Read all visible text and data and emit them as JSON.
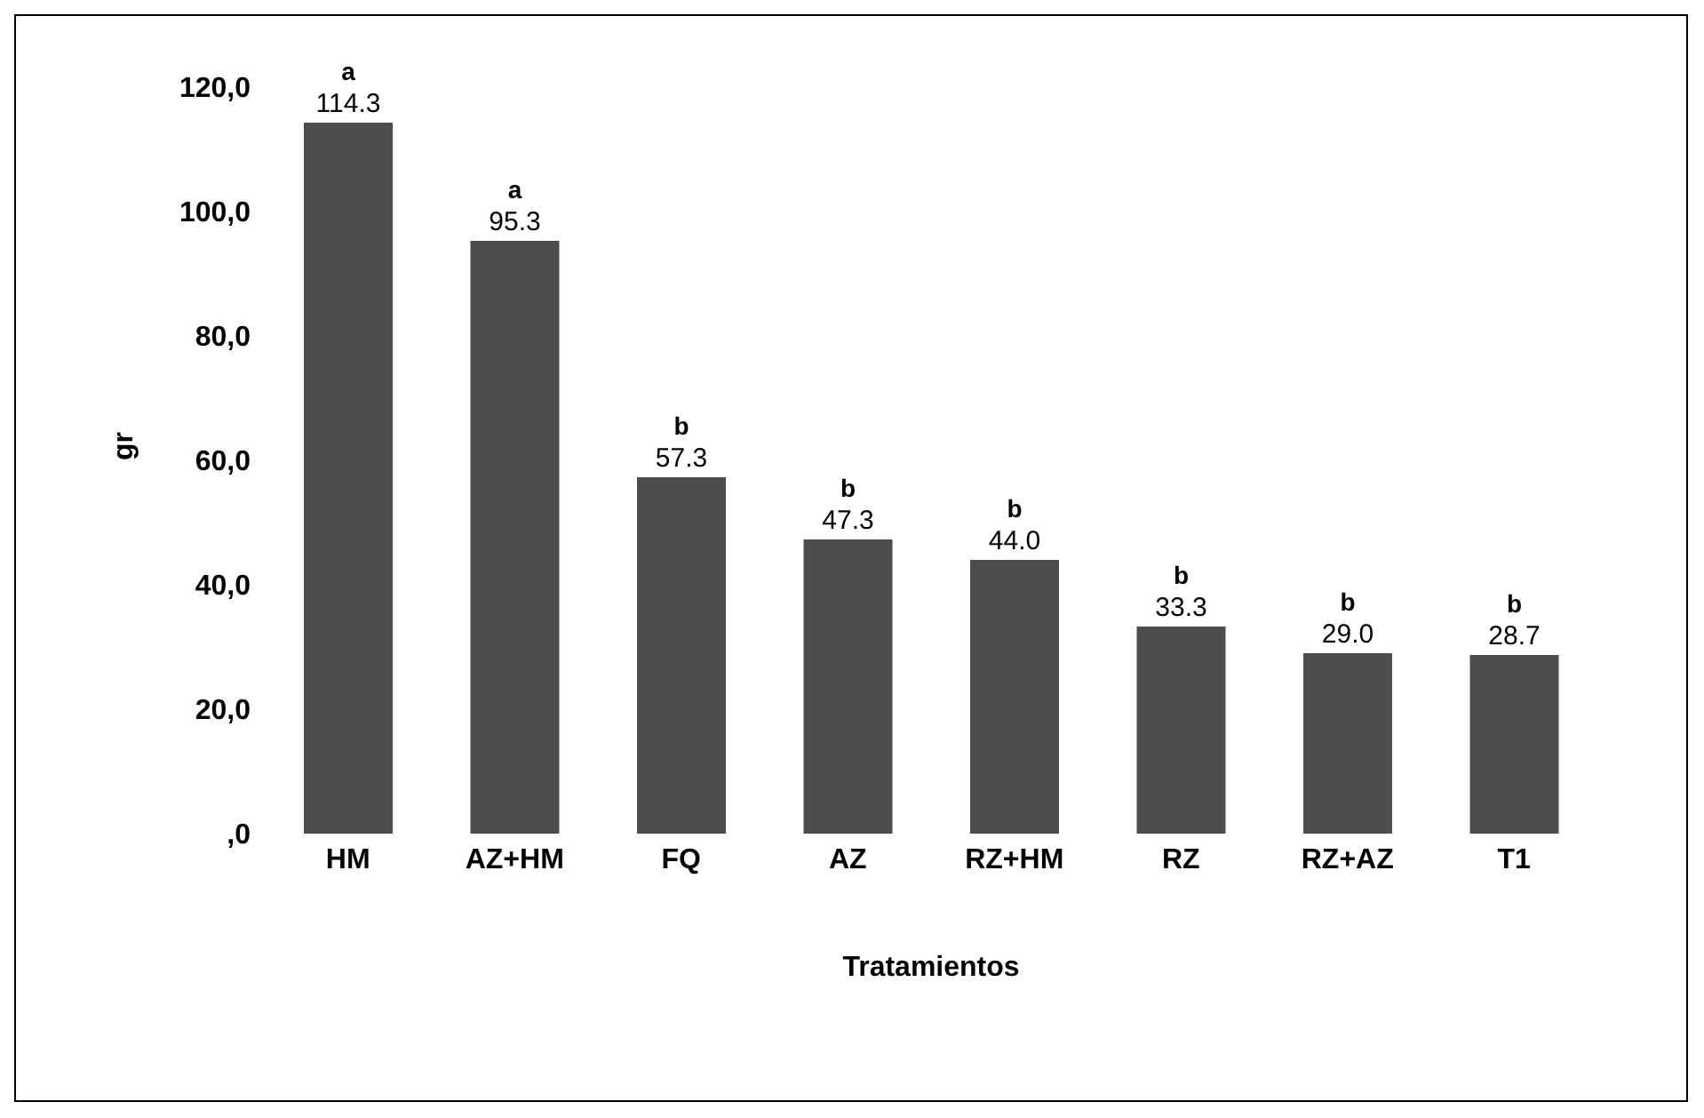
{
  "chart_data": {
    "type": "bar",
    "xlabel": "Tratamientos",
    "ylabel": "gr",
    "categories": [
      "HM",
      "AZ+HM",
      "FQ",
      "AZ",
      "RZ+HM",
      "RZ",
      "RZ+AZ",
      "T1"
    ],
    "values": [
      114.3,
      95.3,
      57.3,
      47.3,
      44.0,
      33.3,
      29.0,
      28.7
    ],
    "value_labels": [
      "114.3",
      "95.3",
      "57.3",
      "47.3",
      "44.0",
      "33.3",
      "29.0",
      "28.7"
    ],
    "color": "#4d4d4d",
    "ylim": [
      0,
      120
    ],
    "yticks": [
      {
        "value": 0,
        "label": ",0"
      },
      {
        "value": 20,
        "label": "20,0"
      },
      {
        "value": 40,
        "label": "40,0"
      },
      {
        "value": 60,
        "label": "60,0"
      },
      {
        "value": 80,
        "label": "80,0"
      },
      {
        "value": 100,
        "label": "100,0"
      },
      {
        "value": 120,
        "label": "120,0"
      }
    ],
    "grid": false,
    "legend": false,
    "annotations": [
      {
        "text": "a",
        "x": "HM",
        "y": 114.3
      },
      {
        "text": "a",
        "x": "AZ+HM",
        "y": 95.3
      },
      {
        "text": "b",
        "x": "FQ",
        "y": 57.3
      },
      {
        "text": "b",
        "x": "AZ",
        "y": 47.3
      },
      {
        "text": "b",
        "x": "RZ+HM",
        "y": 44.0
      },
      {
        "text": "b",
        "x": "RZ",
        "y": 33.3
      },
      {
        "text": "b",
        "x": "RZ+AZ",
        "y": 29.0
      },
      {
        "text": "b",
        "x": "T1",
        "y": 28.7
      }
    ]
  }
}
